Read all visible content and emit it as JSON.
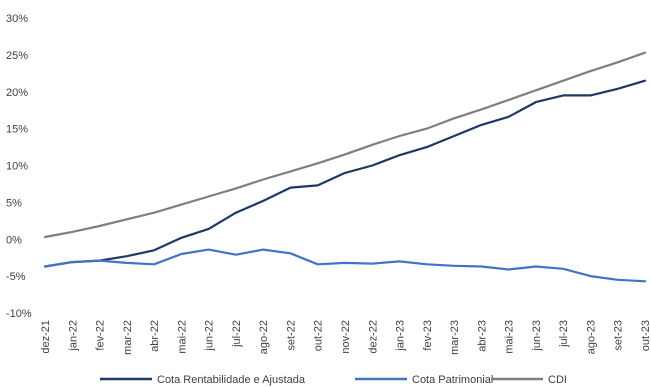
{
  "chart_data": {
    "type": "line",
    "title": "",
    "xlabel": "",
    "ylabel": "",
    "ylim": [
      -10,
      30
    ],
    "yticks": [
      -10,
      -5,
      0,
      5,
      10,
      15,
      20,
      25,
      30
    ],
    "ytick_labels": [
      "-10%",
      "-5%",
      "0%",
      "5%",
      "10%",
      "15%",
      "20%",
      "25%",
      "30%"
    ],
    "grid": false,
    "legend_position": "bottom",
    "categories": [
      "dez-21",
      "jan-22",
      "fev-22",
      "mar-22",
      "abr-22",
      "mai-22",
      "jun-22",
      "jul-22",
      "ago-22",
      "set-22",
      "out-22",
      "nov-22",
      "dez-22",
      "jan-23",
      "fev-23",
      "mar-23",
      "abr-23",
      "mai-23",
      "jun-23",
      "jul-23",
      "ago-23",
      "set-23",
      "out-23"
    ],
    "series": [
      {
        "name": "Cota Rentabilidade e Ajustada",
        "color": "#1F3864",
        "values": [
          -3.7,
          -3.1,
          -2.9,
          -2.3,
          -1.5,
          0.2,
          1.4,
          3.6,
          5.2,
          7.0,
          7.3,
          9.0,
          10.0,
          11.4,
          12.5,
          14.0,
          15.5,
          16.6,
          18.6,
          19.5,
          19.5,
          20.4,
          21.5
        ]
      },
      {
        "name": "Cota Patrimonial",
        "color": "#4472C4",
        "values": [
          -3.7,
          -3.1,
          -2.9,
          -3.2,
          -3.4,
          -2.0,
          -1.4,
          -2.1,
          -1.4,
          -1.9,
          -3.4,
          -3.2,
          -3.3,
          -3.0,
          -3.4,
          -3.6,
          -3.7,
          -4.1,
          -3.7,
          -4.0,
          -5.0,
          -5.5,
          -5.7
        ]
      },
      {
        "name": "CDI",
        "color": "#7F7F7F",
        "values": [
          0.3,
          1.0,
          1.8,
          2.7,
          3.6,
          4.7,
          5.8,
          6.9,
          8.1,
          9.2,
          10.3,
          11.5,
          12.8,
          14.0,
          15.0,
          16.4,
          17.6,
          18.9,
          20.2,
          21.5,
          22.8,
          24.0,
          25.3
        ]
      }
    ]
  }
}
